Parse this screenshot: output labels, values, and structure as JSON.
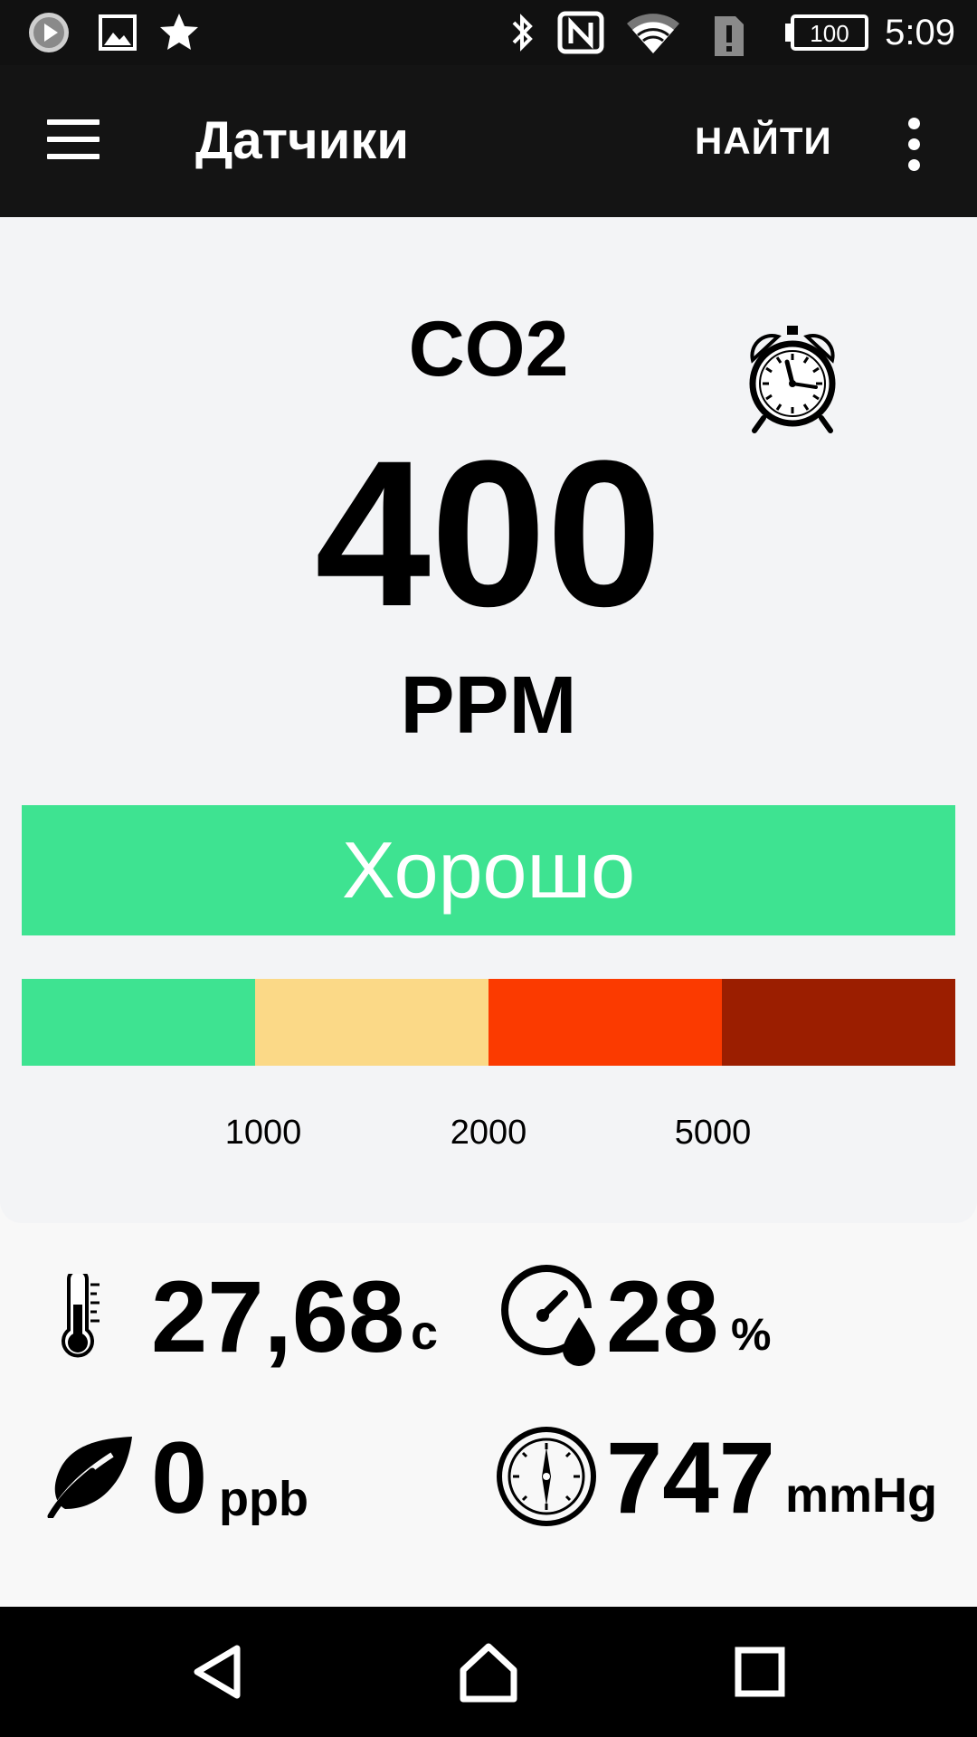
{
  "status_bar": {
    "time": "5:09",
    "battery": "100",
    "icons_left": [
      "play-icon",
      "image-icon",
      "star-icon"
    ],
    "icons_right": [
      "bluetooth-icon",
      "nfc-icon",
      "wifi-icon",
      "sim-alert-icon",
      "battery-icon"
    ]
  },
  "appbar": {
    "title": "Датчики",
    "find_label": "НАЙТИ",
    "menu_icon": "hamburger-menu-icon",
    "more_icon": "overflow-menu-icon"
  },
  "main_sensor": {
    "name": "CO2",
    "value": "400",
    "unit": "PPM",
    "status_label": "Хорошо",
    "status_color": "#3ee391",
    "alarm_icon": "alarm-clock-icon",
    "scale": {
      "colors": [
        "#3ee391",
        "#fbd987",
        "#fb3a00",
        "#9b1e00"
      ],
      "thresholds": [
        "1000",
        "2000",
        "5000"
      ]
    }
  },
  "readings": {
    "temperature": {
      "value": "27,68",
      "unit": "c",
      "icon": "thermometer-icon"
    },
    "humidity": {
      "value": "28",
      "unit": "%",
      "icon": "humidity-gauge-icon"
    },
    "voc": {
      "value": "0",
      "unit": "ppb",
      "icon": "leaf-icon"
    },
    "pressure": {
      "value": "747",
      "unit": "mmHg",
      "icon": "barometer-icon"
    }
  },
  "navbar": {
    "icons": [
      "back-icon",
      "home-icon",
      "recents-icon"
    ]
  }
}
